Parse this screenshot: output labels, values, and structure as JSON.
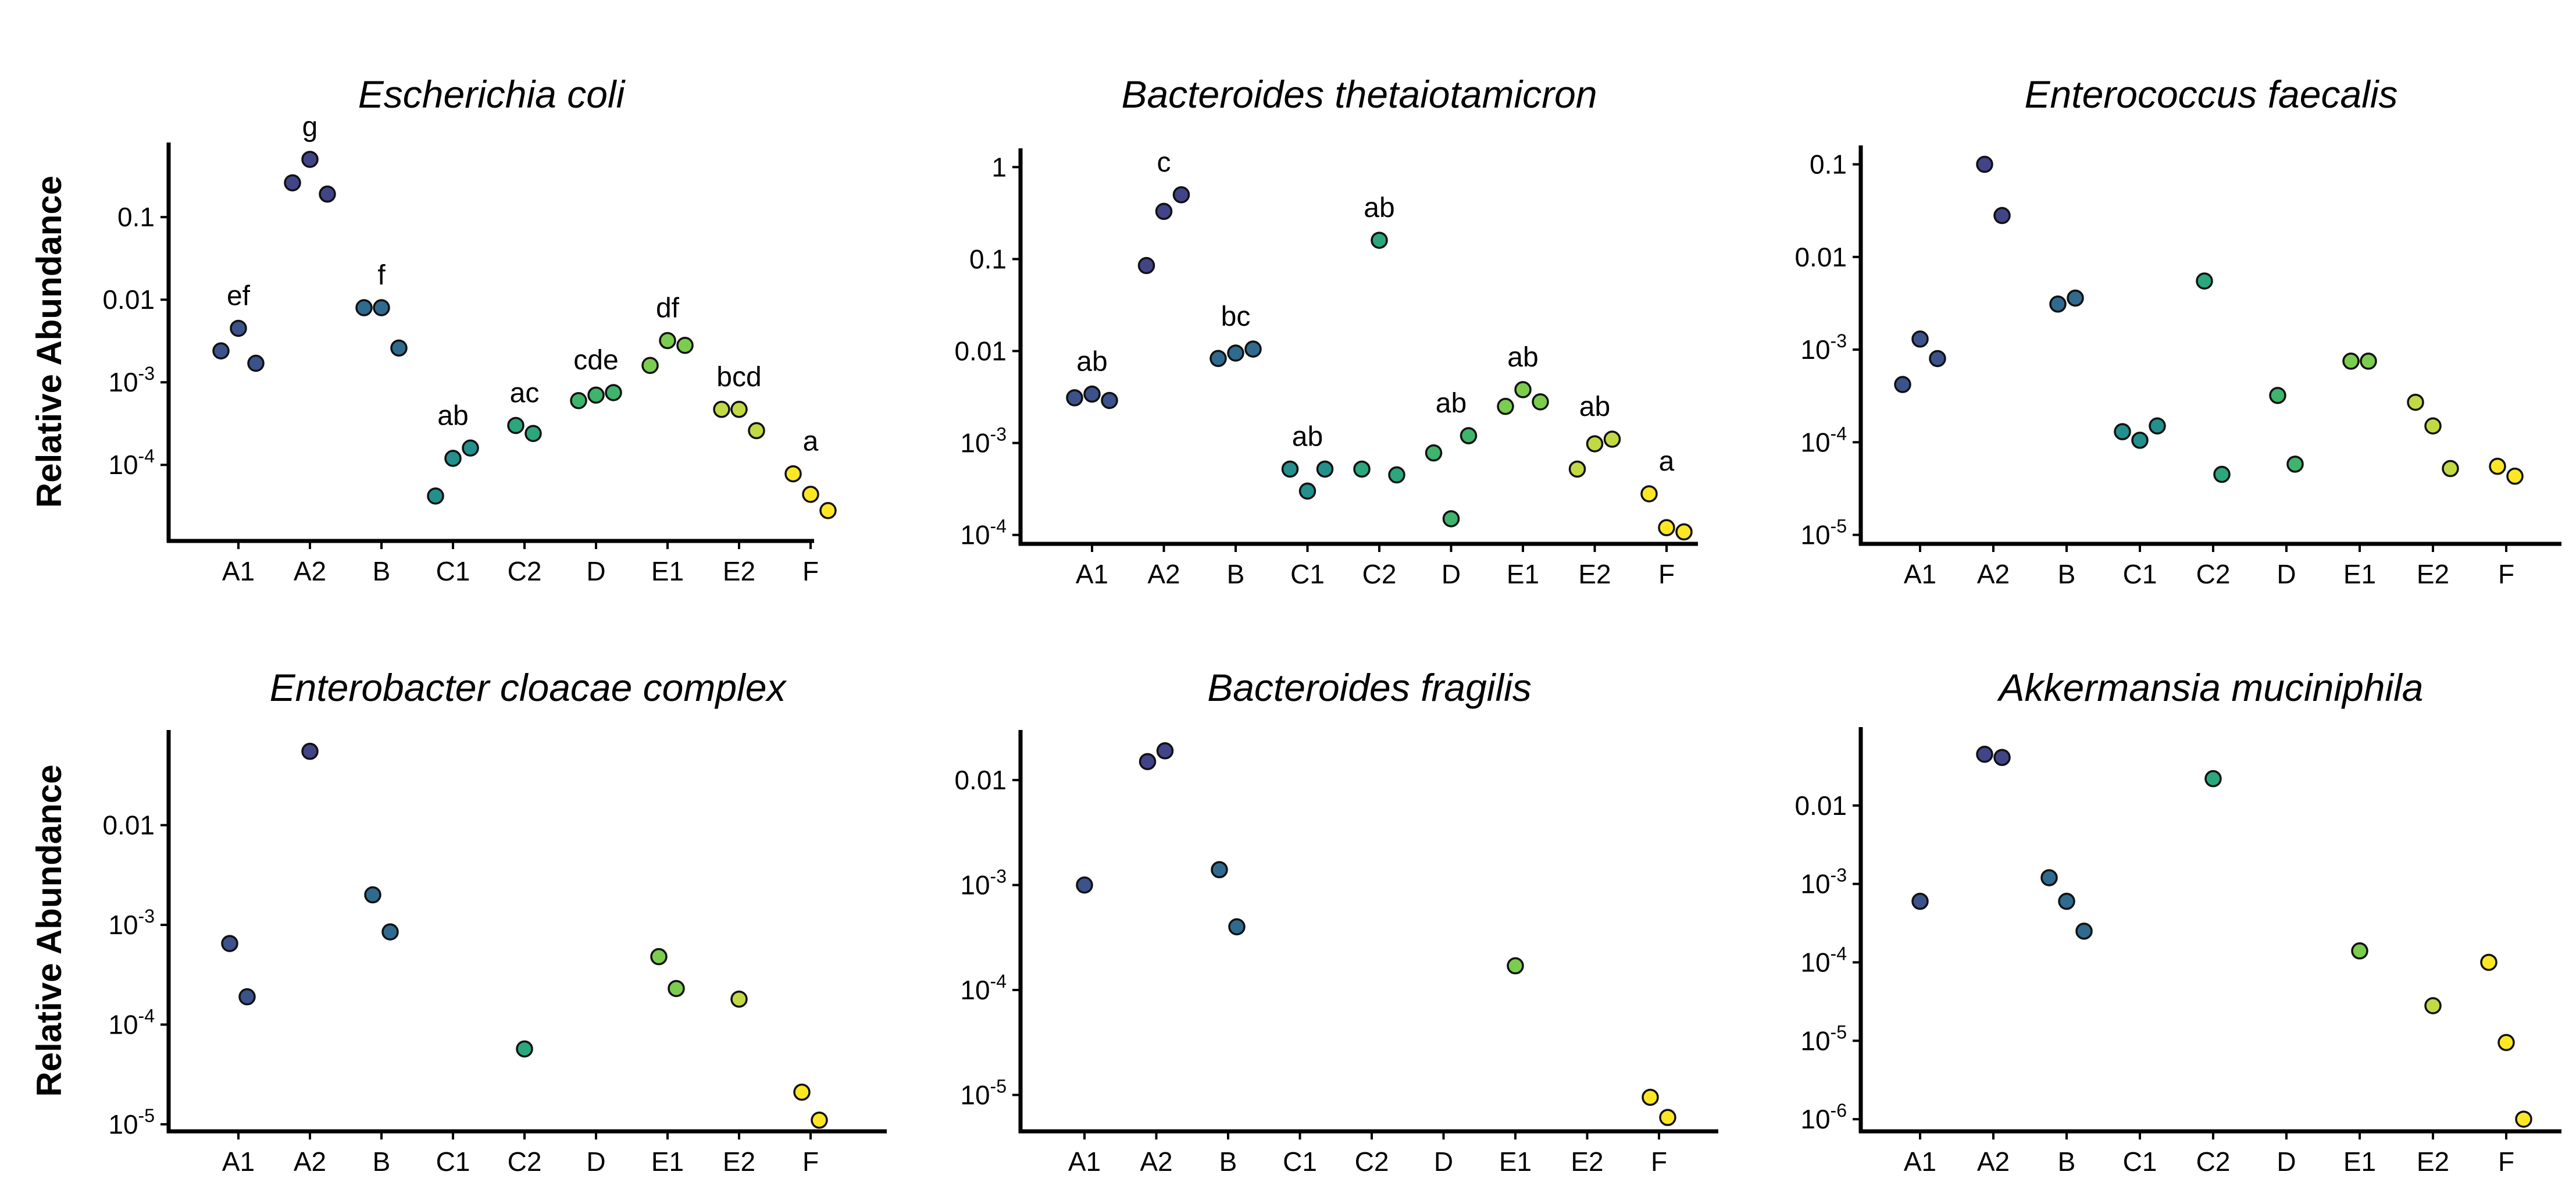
{
  "y_axis_label": "Relative Abundance",
  "chart_data": [
    {
      "type": "scatter",
      "title": "Escherichia coli",
      "ylabel": "Relative Abundance",
      "yscale": "log",
      "ylim": [
        1.2e-05,
        0.8
      ],
      "y_ticks": [
        {
          "v": 0.0001,
          "label": "10",
          "exp": "-4"
        },
        {
          "v": 0.001,
          "label": "10",
          "exp": "-3"
        },
        {
          "v": 0.01,
          "label": "0.01",
          "exp": ""
        },
        {
          "v": 0.1,
          "label": "0.1",
          "exp": ""
        }
      ],
      "categories": [
        "A1",
        "A2",
        "B",
        "C1",
        "C2",
        "D",
        "E1",
        "E2",
        "F"
      ],
      "series": [
        {
          "name": "A1",
          "values": [
            0.0024,
            0.0045,
            0.0017
          ],
          "letter": "ef"
        },
        {
          "name": "A2",
          "values": [
            0.26,
            0.5,
            0.19
          ],
          "letter": "g"
        },
        {
          "name": "B",
          "values": [
            0.008,
            0.008,
            0.0026
          ],
          "letter": "f"
        },
        {
          "name": "C1",
          "values": [
            4.2e-05,
            0.00012,
            0.00016
          ],
          "letter": "ab"
        },
        {
          "name": "C2",
          "values": [
            0.0003,
            0.00024
          ],
          "letter": "ac"
        },
        {
          "name": "D",
          "values": [
            0.0006,
            0.0007,
            0.00075
          ],
          "letter": "cde"
        },
        {
          "name": "E1",
          "values": [
            0.0016,
            0.0032,
            0.0028
          ],
          "letter": "df"
        },
        {
          "name": "E2",
          "values": [
            0.00047,
            0.00047,
            0.00026
          ],
          "letter": "bcd"
        },
        {
          "name": "F",
          "values": [
            7.8e-05,
            4.4e-05,
            2.8e-05
          ],
          "letter": "a"
        }
      ]
    },
    {
      "type": "scatter",
      "title": "Bacteroides thetaiotamicron",
      "ylabel": "",
      "yscale": "log",
      "ylim": [
        8e-05,
        1.6
      ],
      "y_ticks": [
        {
          "v": 0.0001,
          "label": "10",
          "exp": "-4"
        },
        {
          "v": 0.001,
          "label": "10",
          "exp": "-3"
        },
        {
          "v": 0.01,
          "label": "0.01",
          "exp": ""
        },
        {
          "v": 0.1,
          "label": "0.1",
          "exp": ""
        },
        {
          "v": 1,
          "label": "1",
          "exp": ""
        }
      ],
      "categories": [
        "A1",
        "A2",
        "B",
        "C1",
        "C2",
        "D",
        "E1",
        "E2",
        "F"
      ],
      "series": [
        {
          "name": "A1",
          "values": [
            0.0031,
            0.0034,
            0.0029
          ],
          "letter": "ab"
        },
        {
          "name": "A2",
          "values": [
            0.085,
            0.33,
            0.5
          ],
          "letter": "c"
        },
        {
          "name": "B",
          "values": [
            0.0083,
            0.0095,
            0.0105
          ],
          "letter": "bc"
        },
        {
          "name": "C1",
          "values": [
            0.00052,
            0.0003,
            0.00052
          ],
          "letter": "ab"
        },
        {
          "name": "C2",
          "values": [
            0.00052,
            0.16,
            0.00045
          ],
          "letter": "ab"
        },
        {
          "name": "D",
          "values": [
            0.00078,
            0.00015,
            0.0012
          ],
          "letter": "ab"
        },
        {
          "name": "E1",
          "values": [
            0.0025,
            0.0038,
            0.0028
          ],
          "letter": "ab"
        },
        {
          "name": "E2",
          "values": [
            0.00052,
            0.00098,
            0.0011
          ],
          "letter": "ab"
        },
        {
          "name": "F",
          "values": [
            0.00028,
            0.00012,
            0.000108
          ],
          "letter": "a"
        }
      ]
    },
    {
      "type": "scatter",
      "title": "Enterococcus faecalis",
      "ylabel": "",
      "yscale": "log",
      "ylim": [
        8e-06,
        0.16
      ],
      "y_ticks": [
        {
          "v": 1e-05,
          "label": "10",
          "exp": "-5"
        },
        {
          "v": 0.0001,
          "label": "10",
          "exp": "-4"
        },
        {
          "v": 0.001,
          "label": "10",
          "exp": "-3"
        },
        {
          "v": 0.01,
          "label": "0.01",
          "exp": ""
        },
        {
          "v": 0.1,
          "label": "0.1",
          "exp": ""
        }
      ],
      "categories": [
        "A1",
        "A2",
        "B",
        "C1",
        "C2",
        "D",
        "E1",
        "E2",
        "F"
      ],
      "series": [
        {
          "name": "A1",
          "values": [
            0.00042,
            0.0013,
            0.0008
          ]
        },
        {
          "name": "A2",
          "values": [
            0.1,
            0.028
          ]
        },
        {
          "name": "B",
          "values": [
            0.0031,
            0.0036
          ]
        },
        {
          "name": "C1",
          "values": [
            0.00013,
            0.000105,
            0.00015
          ]
        },
        {
          "name": "C2",
          "values": [
            0.0055,
            4.5e-05
          ]
        },
        {
          "name": "D",
          "values": [
            0.00032,
            5.8e-05
          ]
        },
        {
          "name": "E1",
          "values": [
            0.00075,
            0.00075
          ]
        },
        {
          "name": "E2",
          "values": [
            0.00027,
            0.00015,
            5.2e-05
          ]
        },
        {
          "name": "F",
          "values": [
            5.5e-05,
            4.3e-05
          ]
        }
      ]
    },
    {
      "type": "scatter",
      "title": "Enterobacter cloacae complex",
      "ylabel": "Relative Abundance",
      "yscale": "log",
      "ylim": [
        8.5e-06,
        0.09
      ],
      "y_ticks": [
        {
          "v": 1e-05,
          "label": "10",
          "exp": "-5"
        },
        {
          "v": 0.0001,
          "label": "10",
          "exp": "-4"
        },
        {
          "v": 0.001,
          "label": "10",
          "exp": "-3"
        },
        {
          "v": 0.01,
          "label": "0.01",
          "exp": ""
        }
      ],
      "categories": [
        "A1",
        "A2",
        "B",
        "C1",
        "C2",
        "D",
        "E1",
        "E2",
        "F"
      ],
      "series": [
        {
          "name": "A1",
          "values": [
            0.00065,
            0.00019
          ]
        },
        {
          "name": "A2",
          "values": [
            0.055
          ]
        },
        {
          "name": "B",
          "values": [
            0.002,
            0.00085
          ]
        },
        {
          "name": "C1",
          "values": []
        },
        {
          "name": "C2",
          "values": [
            5.7e-05
          ]
        },
        {
          "name": "D",
          "values": []
        },
        {
          "name": "E1",
          "values": [
            0.00048,
            0.00023
          ]
        },
        {
          "name": "E2",
          "values": [
            0.00018
          ]
        },
        {
          "name": "F",
          "values": [
            2.1e-05,
            1.1e-05
          ]
        }
      ]
    },
    {
      "type": "scatter",
      "title": "Bacteroides fragilis",
      "ylabel": "",
      "yscale": "log",
      "ylim": [
        4.5e-06,
        0.03
      ],
      "y_ticks": [
        {
          "v": 1e-05,
          "label": "10",
          "exp": "-5"
        },
        {
          "v": 0.0001,
          "label": "10",
          "exp": "-4"
        },
        {
          "v": 0.001,
          "label": "10",
          "exp": "-3"
        },
        {
          "v": 0.01,
          "label": "0.01",
          "exp": ""
        }
      ],
      "categories": [
        "A1",
        "A2",
        "B",
        "C1",
        "C2",
        "D",
        "E1",
        "E2",
        "F"
      ],
      "series": [
        {
          "name": "A1",
          "values": [
            0.001
          ]
        },
        {
          "name": "A2",
          "values": [
            0.015,
            0.019
          ]
        },
        {
          "name": "B",
          "values": [
            0.0014,
            0.0004
          ]
        },
        {
          "name": "C1",
          "values": []
        },
        {
          "name": "C2",
          "values": []
        },
        {
          "name": "D",
          "values": []
        },
        {
          "name": "E1",
          "values": [
            0.00017
          ]
        },
        {
          "name": "E2",
          "values": []
        },
        {
          "name": "F",
          "values": [
            9.5e-06,
            6.1e-06
          ]
        }
      ]
    },
    {
      "type": "scatter",
      "title": "Akkermansia muciniphila",
      "ylabel": "",
      "yscale": "log",
      "ylim": [
        7e-07,
        0.1
      ],
      "y_ticks": [
        {
          "v": 1e-06,
          "label": "10",
          "exp": "-6"
        },
        {
          "v": 1e-05,
          "label": "10",
          "exp": "-5"
        },
        {
          "v": 0.0001,
          "label": "10",
          "exp": "-4"
        },
        {
          "v": 0.001,
          "label": "10",
          "exp": "-3"
        },
        {
          "v": 0.01,
          "label": "0.01",
          "exp": ""
        }
      ],
      "categories": [
        "A1",
        "A2",
        "B",
        "C1",
        "C2",
        "D",
        "E1",
        "E2",
        "F"
      ],
      "series": [
        {
          "name": "A1",
          "values": [
            0.0006
          ]
        },
        {
          "name": "A2",
          "values": [
            0.045,
            0.041
          ]
        },
        {
          "name": "B",
          "values": [
            0.0012,
            0.0006,
            0.00025
          ]
        },
        {
          "name": "C1",
          "values": []
        },
        {
          "name": "C2",
          "values": [
            0.022
          ]
        },
        {
          "name": "D",
          "values": []
        },
        {
          "name": "E1",
          "values": [
            0.00014
          ]
        },
        {
          "name": "E2",
          "values": [
            2.8e-05
          ]
        },
        {
          "name": "F",
          "values": [
            0.0001,
            9.5e-06,
            1e-06
          ]
        }
      ]
    }
  ],
  "palette": [
    "#3b528b",
    "#3b528b",
    "#2f6b8e",
    "#22908c",
    "#2aa77d",
    "#3eb46c",
    "#7bcd4e",
    "#c2d944",
    "#fde725"
  ],
  "a2_color": "#414487"
}
